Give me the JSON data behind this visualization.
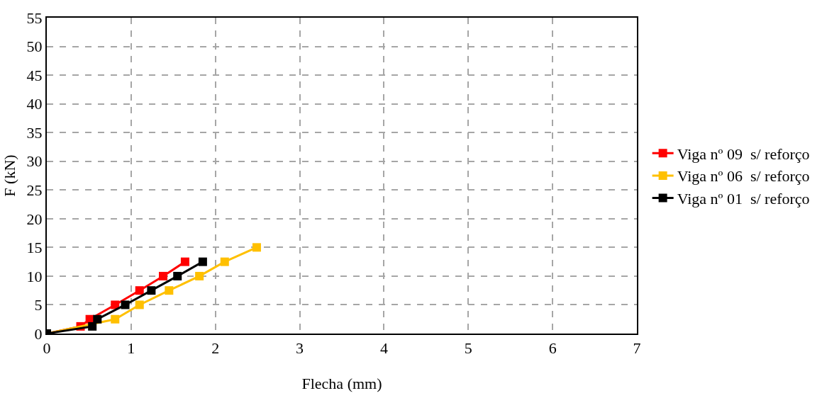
{
  "chart_data": {
    "type": "line",
    "xlabel": "Flecha (mm)",
    "ylabel": "F (kN)",
    "xlim": [
      0,
      7
    ],
    "xticks": [
      0,
      1,
      2,
      3,
      4,
      5,
      6,
      7
    ],
    "ylim": [
      0,
      55
    ],
    "yticks": [
      0,
      5,
      10,
      15,
      20,
      25,
      30,
      35,
      40,
      45,
      50,
      55
    ],
    "grid": true,
    "legend": "right",
    "marker": "square",
    "line_style": "solid",
    "series": [
      {
        "name": "Viga nº 09  s/ reforço",
        "color": "#ff0000",
        "x": [
          0,
          0.4,
          0.51,
          0.81,
          1.1,
          1.38,
          1.64
        ],
        "values": [
          0,
          1.25,
          2.5,
          5,
          7.5,
          10,
          12.5
        ]
      },
      {
        "name": "Viga nº 06  s/ reforço",
        "color": "#ffc000",
        "x": [
          0,
          0.81,
          1.1,
          1.45,
          1.81,
          2.11,
          2.49
        ],
        "values": [
          0,
          2.5,
          5,
          7.5,
          10,
          12.5,
          15
        ]
      },
      {
        "name": "Viga nº 01  s/ reforço",
        "color": "#000000",
        "x": [
          0,
          0.54,
          0.6,
          0.93,
          1.24,
          1.55,
          1.85
        ],
        "values": [
          0,
          1.25,
          2.5,
          5,
          7.5,
          10,
          12.5
        ]
      }
    ]
  }
}
